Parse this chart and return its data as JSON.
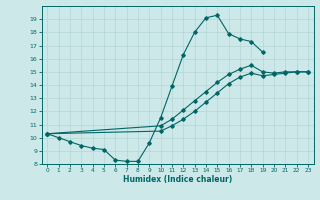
{
  "title": "",
  "xlabel": "Humidex (Indice chaleur)",
  "ylabel": "",
  "bg_color": "#cce8e8",
  "grid_color": "#aacccc",
  "line_color": "#006666",
  "ylim": [
    8,
    20
  ],
  "xlim": [
    -0.5,
    23.5
  ],
  "yticks": [
    8,
    9,
    10,
    11,
    12,
    13,
    14,
    15,
    16,
    17,
    18,
    19
  ],
  "xticks": [
    0,
    1,
    2,
    3,
    4,
    5,
    6,
    7,
    8,
    9,
    10,
    11,
    12,
    13,
    14,
    15,
    16,
    17,
    18,
    19,
    20,
    21,
    22,
    23
  ],
  "series": [
    {
      "x": [
        0,
        1,
        2,
        3,
        4,
        5,
        6,
        7,
        8,
        9,
        10,
        11,
        12,
        13,
        14,
        15,
        16,
        17,
        18,
        19
      ],
      "y": [
        10.3,
        10.0,
        9.7,
        9.4,
        9.2,
        9.1,
        8.3,
        8.2,
        8.2,
        9.6,
        11.5,
        13.9,
        16.3,
        18.0,
        19.1,
        19.3,
        17.9,
        17.5,
        17.3,
        16.5
      ]
    },
    {
      "x": [
        0,
        10,
        11,
        12,
        13,
        14,
        15,
        16,
        17,
        18,
        19,
        20,
        21,
        22,
        23
      ],
      "y": [
        10.3,
        10.9,
        11.4,
        12.1,
        12.8,
        13.5,
        14.2,
        14.8,
        15.2,
        15.5,
        15.0,
        14.9,
        15.0,
        15.0,
        15.0
      ]
    },
    {
      "x": [
        0,
        10,
        11,
        12,
        13,
        14,
        15,
        16,
        17,
        18,
        19,
        20,
        21,
        22,
        23
      ],
      "y": [
        10.3,
        10.5,
        10.9,
        11.4,
        12.0,
        12.7,
        13.4,
        14.1,
        14.6,
        14.9,
        14.7,
        14.8,
        14.9,
        15.0,
        15.0
      ]
    }
  ]
}
